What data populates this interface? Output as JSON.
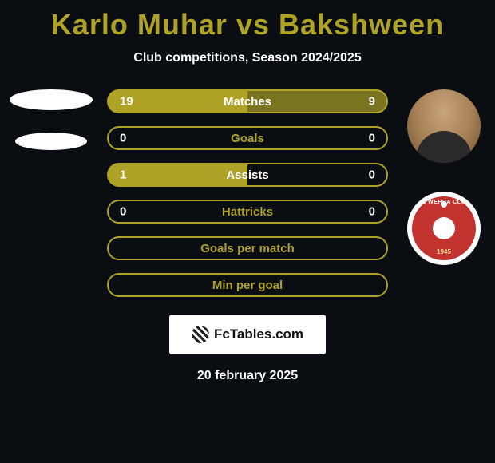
{
  "title_color": "#aea227",
  "player1_name": "Karlo Muhar",
  "vs_text": "vs",
  "player2_name": "Bakshween",
  "subtitle": "Club competitions, Season 2024/2025",
  "stat_rows": [
    {
      "key": "matches",
      "label": "Matches",
      "left": "19",
      "right": "9",
      "left_fill": "#aea227",
      "right_fill": "#7a7420",
      "border": "#aea227",
      "label_color": "#ffffff"
    },
    {
      "key": "goals",
      "label": "Goals",
      "left": "0",
      "right": "0",
      "left_fill": "transparent",
      "right_fill": "transparent",
      "border": "#aea227",
      "label_color": "#aea227"
    },
    {
      "key": "assists",
      "label": "Assists",
      "left": "1",
      "right": "0",
      "left_fill": "#aea227",
      "right_fill": "transparent",
      "border": "#aea227",
      "label_color": "#ffffff"
    },
    {
      "key": "hattricks",
      "label": "Hattricks",
      "left": "0",
      "right": "0",
      "left_fill": "transparent",
      "right_fill": "transparent",
      "border": "#aea227",
      "label_color": "#aea227"
    },
    {
      "key": "goals-per-match",
      "label": "Goals per match",
      "left": "",
      "right": "",
      "left_fill": "transparent",
      "right_fill": "transparent",
      "border": "#aea227",
      "label_color": "#aea227"
    },
    {
      "key": "min-per-goal",
      "label": "Min per goal",
      "left": "",
      "right": "",
      "left_fill": "transparent",
      "right_fill": "transparent",
      "border": "#aea227",
      "label_color": "#aea227"
    }
  ],
  "footer_brand": "FcTables.com",
  "date_text": "20 february 2025",
  "club_name": "AL WEHDA CLUB",
  "club_year": "1945"
}
